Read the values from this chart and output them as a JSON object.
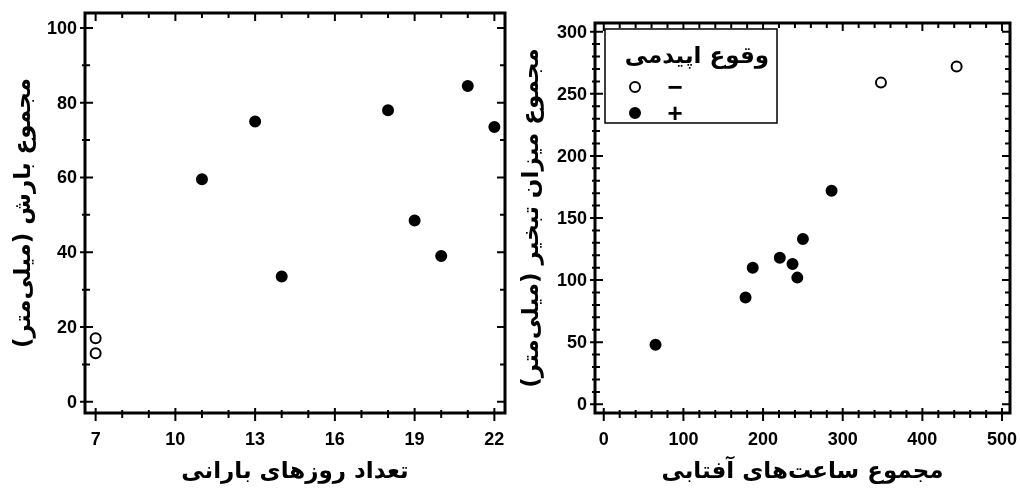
{
  "chart_data": [
    {
      "type": "scatter",
      "xlabel": "تعداد روزهای بارانی",
      "ylabel": "مجموع بارش (میلی‌متر)",
      "xlim": [
        6.6,
        22.4
      ],
      "ylim": [
        -3,
        104
      ],
      "xticks": [
        7,
        10,
        13,
        16,
        19,
        22
      ],
      "yticks": [
        0,
        20,
        40,
        60,
        80,
        100
      ],
      "marker": "circle",
      "legend": false,
      "series": [
        {
          "color": "#ffffff",
          "x": [
            7,
            7
          ],
          "values": [
            17,
            13
          ]
        },
        {
          "color": "#000000",
          "x": [
            11,
            13,
            14,
            18,
            19,
            20,
            21,
            22
          ],
          "values": [
            59.5,
            75,
            33.5,
            78,
            48.5,
            39,
            84.5,
            73.5
          ]
        }
      ]
    },
    {
      "type": "scatter",
      "xlabel": "مجموع ساعت‌های آفتابی",
      "ylabel": "مجموع میزان تبخیر (میلی‌متر)",
      "legend_title": "وقوع اپیدمی",
      "xlim": [
        -11,
        510
      ],
      "ylim": [
        -7,
        307
      ],
      "xticks": [
        0,
        100,
        200,
        300,
        400,
        500
      ],
      "yticks": [
        0,
        50,
        100,
        150,
        200,
        250,
        300
      ],
      "marker": "circle",
      "legend": "top left",
      "series": [
        {
          "name": "−",
          "color": "#ffffff",
          "x": [
            348,
            443
          ],
          "values": [
            259,
            272
          ]
        },
        {
          "name": "+",
          "color": "#000000",
          "x": [
            65,
            178,
            187,
            221,
            237,
            243,
            250,
            286
          ],
          "values": [
            48,
            86,
            110,
            118,
            113,
            102,
            133,
            172
          ]
        }
      ]
    }
  ]
}
